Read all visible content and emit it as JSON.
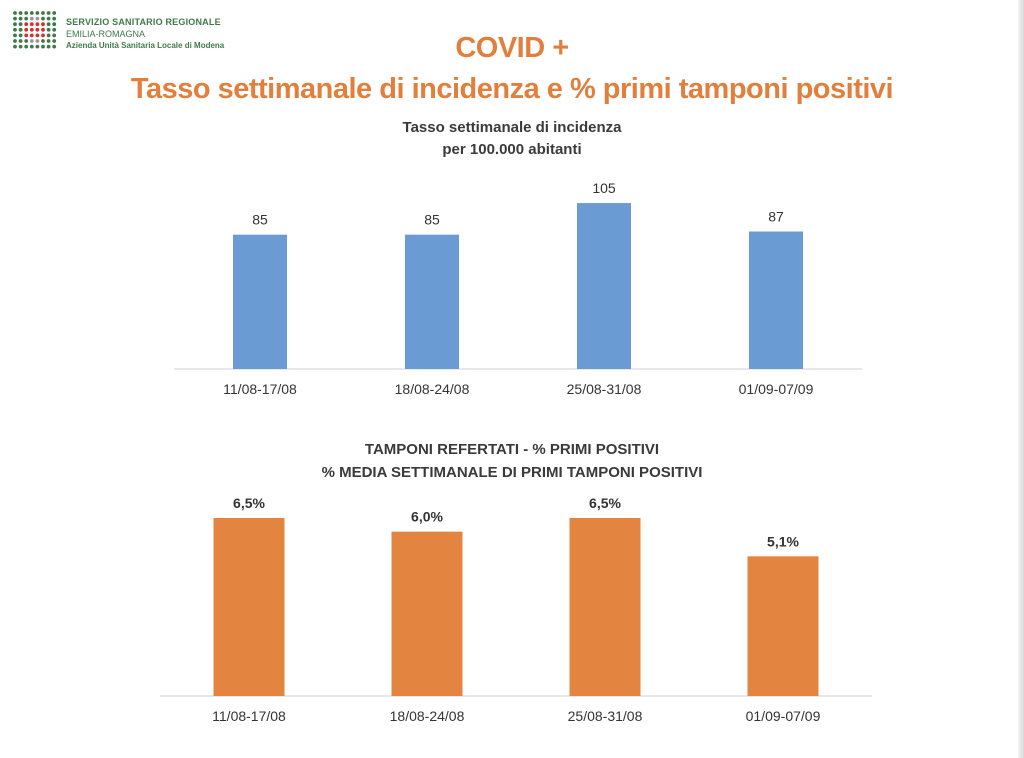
{
  "header": {
    "logo": {
      "line1": "SERVIZIO SANITARIO REGIONALE",
      "line2": "EMILIA-ROMAGNA",
      "line3": "Azienda Unità Sanitaria Locale di Modena",
      "colors": {
        "green": "#3f7a4a",
        "red": "#d2312f",
        "grey": "#9a9a9a"
      }
    },
    "title_line1": "COVID +",
    "title_line2": "Tasso settimanale di incidenza e % primi tamponi positivi",
    "title_color": "#e27f3c"
  },
  "chart_data": [
    {
      "type": "bar",
      "title": "Tasso settimanale di incidenza",
      "subtitle": "per 100.000 abitanti",
      "categories": [
        "11/08-17/08",
        "18/08-24/08",
        "25/08-31/08",
        "01/09-07/09"
      ],
      "values": [
        85,
        85,
        105,
        87
      ],
      "data_labels": [
        "85",
        "85",
        "105",
        "87"
      ],
      "color": "#6a9bd2",
      "ylim": [
        0,
        112
      ],
      "grid": false,
      "legend": "none"
    },
    {
      "type": "bar",
      "title": "TAMPONI REFERTATI - % PRIMI POSITIVI",
      "subtitle": "% MEDIA SETTIMANALE DI PRIMI TAMPONI POSITIVI",
      "categories": [
        "11/08-17/08",
        "18/08-24/08",
        "25/08-31/08",
        "01/09-07/09"
      ],
      "values": [
        6.5,
        6.0,
        6.5,
        5.1
      ],
      "data_labels": [
        "6,5%",
        "6,0%",
        "6,5%",
        "5,1%"
      ],
      "color": "#e38441",
      "ylim": [
        0,
        6.9
      ],
      "grid": false,
      "legend": "none"
    }
  ]
}
